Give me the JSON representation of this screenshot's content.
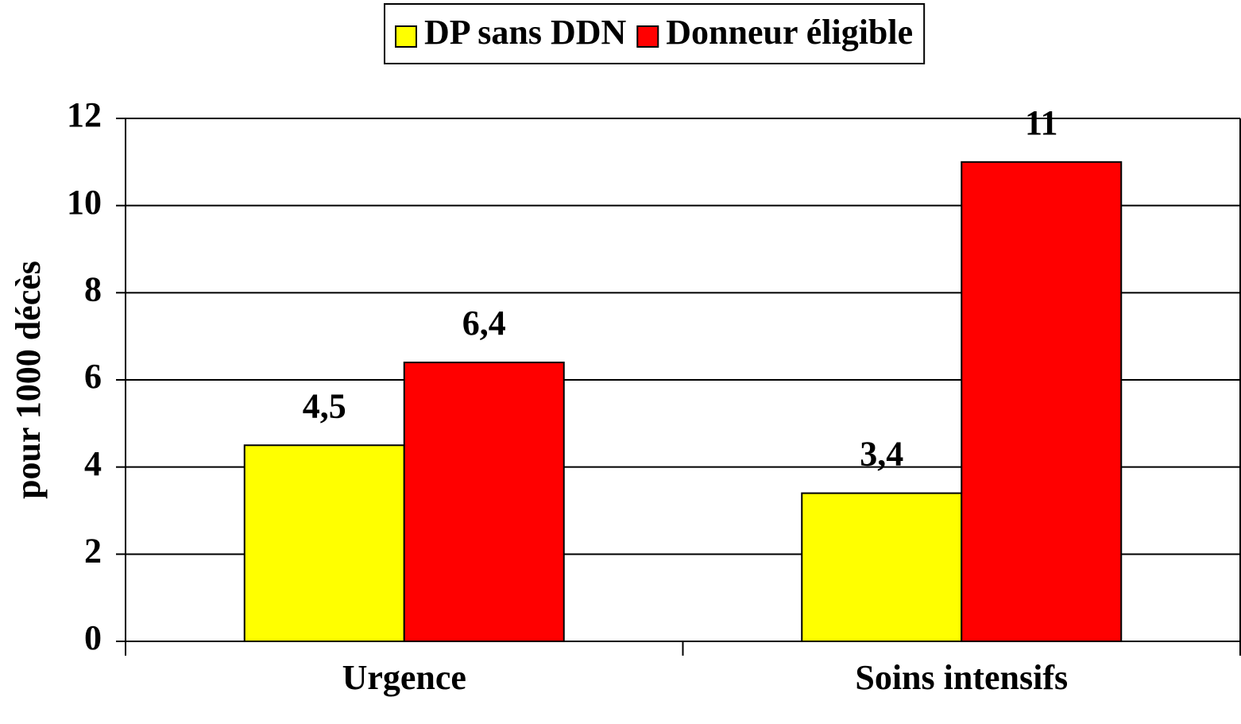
{
  "chart_data": {
    "type": "bar",
    "y_label": "pour 1000 décès",
    "categories": [
      "Urgence",
      "Soins intensifs"
    ],
    "series": [
      {
        "name": "DP sans DDN",
        "color": "#ffff00",
        "values": [
          4.5,
          3.4
        ],
        "value_labels": [
          "4,5",
          "3,4"
        ]
      },
      {
        "name": "Donneur éligible",
        "color": "#ff0000",
        "values": [
          6.4,
          11
        ],
        "value_labels": [
          "6,4",
          "11"
        ]
      }
    ],
    "ylim": [
      0,
      12
    ],
    "yticks": [
      0,
      2,
      4,
      6,
      8,
      10,
      12
    ],
    "grid": true,
    "legend": "top"
  }
}
